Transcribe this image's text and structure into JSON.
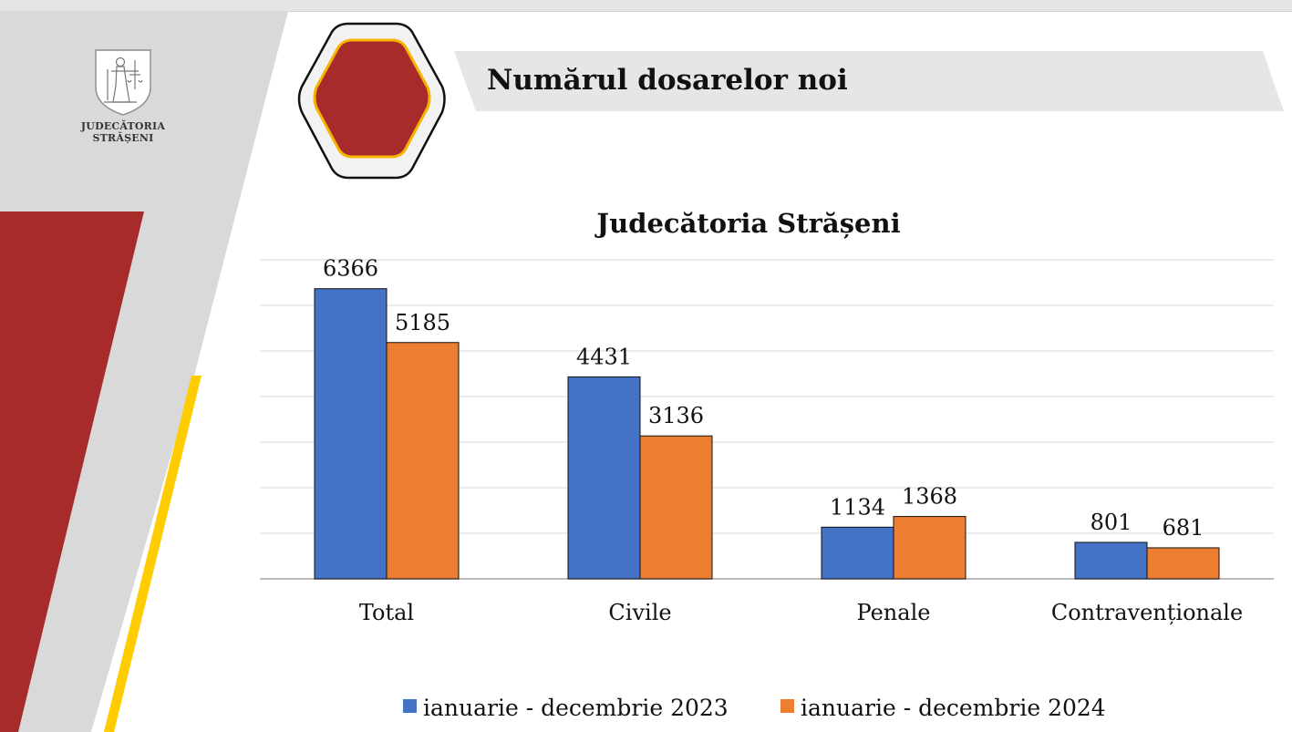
{
  "logo": {
    "line1": "JUDECĂTORIA",
    "line2": "STRĂȘENI"
  },
  "page": {
    "title": "Numărul dosarelor noi"
  },
  "colors": {
    "series_2023": "#4472c4",
    "series_2024": "#ed7d31",
    "brand_red": "#a72b2a",
    "accent_yellow": "#ffcc00",
    "band_gray": "#e6e6e6"
  },
  "chart_data": {
    "type": "bar",
    "title": "Judecătoria Strășeni",
    "categories": [
      "Total",
      "Civile",
      "Penale",
      "Contravenționale"
    ],
    "series": [
      {
        "name": "ianuarie - decembrie 2023",
        "values": [
          6366,
          4431,
          1134,
          801
        ]
      },
      {
        "name": "ianuarie - decembrie 2024",
        "values": [
          5185,
          3136,
          1368,
          681
        ]
      }
    ],
    "ylim": [
      0,
      7000
    ],
    "grid": true,
    "legend": "bottom",
    "xlabel": "",
    "ylabel": ""
  }
}
